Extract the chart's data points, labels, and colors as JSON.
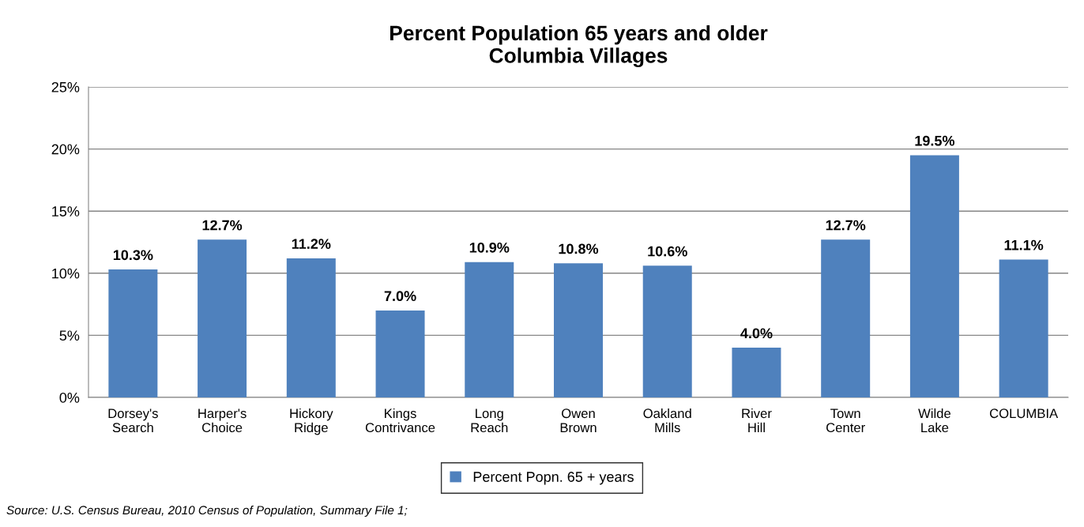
{
  "chart_data": {
    "type": "bar",
    "title": "Percent Population 65 years and older\nColumbia Villages",
    "categories": [
      "Dorsey's\nSearch",
      "Harper's\nChoice",
      "Hickory\nRidge",
      "Kings\nContrivance",
      "Long\nReach",
      "Owen\nBrown",
      "Oakland\nMills",
      "River\nHill",
      "Town\nCenter",
      "Wilde\nLake",
      "COLUMBIA"
    ],
    "series": [
      {
        "name": "Percent Popn. 65 + years",
        "color": "#4f81bd",
        "values": [
          10.3,
          12.7,
          11.2,
          7.0,
          10.9,
          10.8,
          10.6,
          4.0,
          12.7,
          19.5,
          11.1
        ],
        "value_labels": [
          "10.3%",
          "12.7%",
          "11.2%",
          "7.0%",
          "10.9%",
          "10.8%",
          "10.6%",
          "4.0%",
          "12.7%",
          "19.5%",
          "11.1%"
        ]
      }
    ],
    "ylim": [
      0,
      25
    ],
    "yticks": [
      {
        "value": 0,
        "label": "0%"
      },
      {
        "value": 5,
        "label": "5%"
      },
      {
        "value": 10,
        "label": "10%"
      },
      {
        "value": 15,
        "label": "15%"
      },
      {
        "value": 20,
        "label": "20%"
      },
      {
        "value": 25,
        "label": "25%"
      }
    ],
    "grid": "y",
    "legend": "bottom",
    "annotations": [
      "Source: U.S. Census Bureau, 2010 Census of Population, Summary File 1;"
    ]
  }
}
